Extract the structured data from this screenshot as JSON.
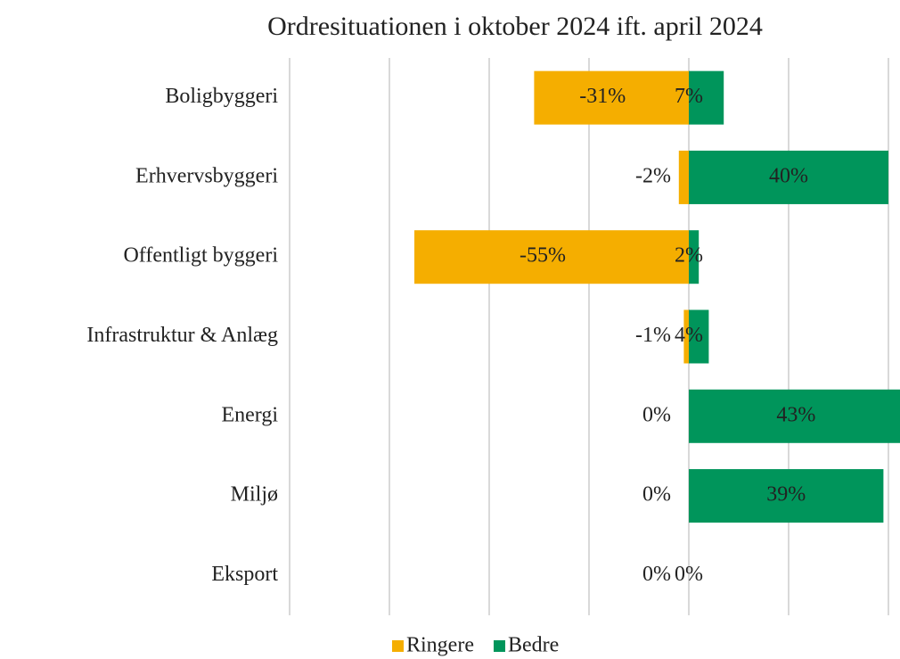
{
  "chart_data": {
    "type": "diverging_bar",
    "title": "Ordresituationen i oktober 2024 ift. april 2024",
    "categories": [
      "Boligbyggeri",
      "Erhvervsbyggeri",
      "Offentligt byggeri",
      "Infrastruktur & Anlæg",
      "Energi",
      "Miljø",
      "Eksport"
    ],
    "series": [
      {
        "name": "Ringere",
        "color": "#f5ae00",
        "values": [
          -31,
          -2,
          -55,
          -1,
          0,
          0,
          0
        ],
        "value_labels": [
          "-31%",
          "-2%",
          "-55%",
          "-1%",
          "0%",
          "0%",
          "0%"
        ]
      },
      {
        "name": "Bedre",
        "color": "#00955b",
        "values": [
          7,
          40,
          2,
          4,
          43,
          39,
          0
        ],
        "value_labels": [
          "7%",
          "40%",
          "2%",
          "4%",
          "43%",
          "39%",
          "0%"
        ]
      }
    ],
    "xlim": [
      -80,
      60
    ],
    "xticks": [
      -80,
      -60,
      -40,
      -20,
      0,
      20,
      40
    ],
    "grid": true,
    "legend": "bottom"
  }
}
